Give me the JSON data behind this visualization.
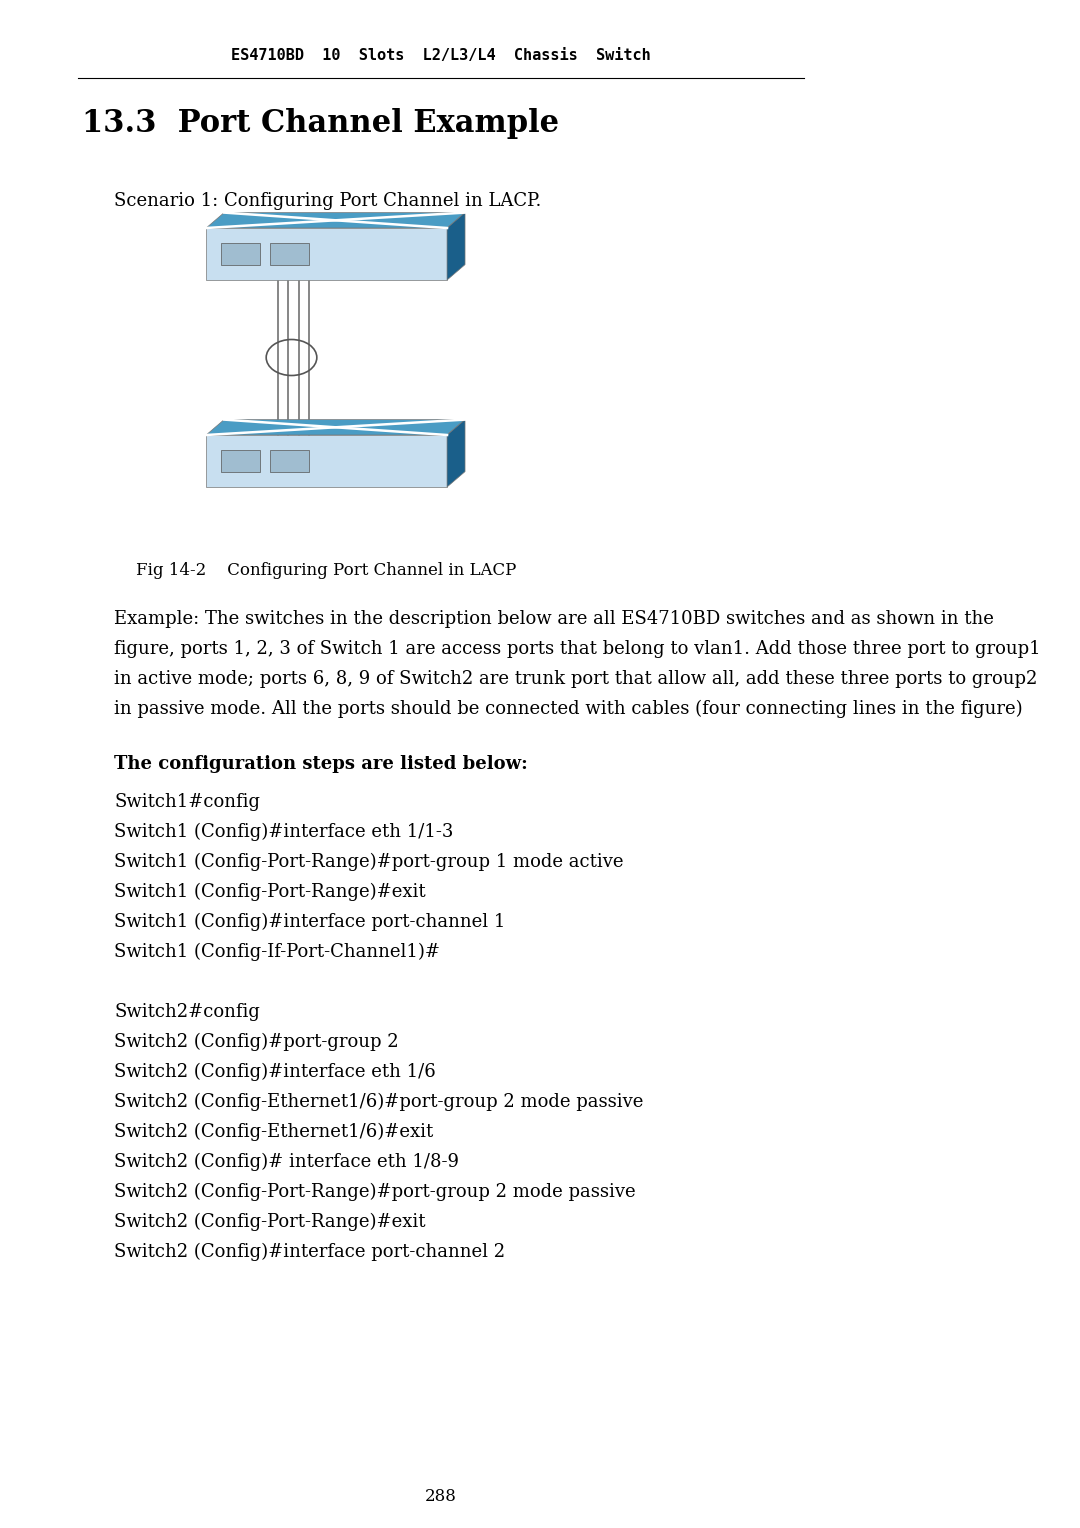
{
  "header": "ES4710BD  10  Slots  L2/L3/L4  Chassis  Switch",
  "title": "13.3  Port Channel Example",
  "scenario": "Scenario 1: Configuring Port Channel in LACP.",
  "fig_caption": "Fig 14-2    Configuring Port Channel in LACP",
  "example_text": [
    "Example: The switches in the description below are all ES4710BD switches and as shown in the",
    "figure, ports 1, 2, 3 of Switch 1 are access ports that belong to vlan1. Add those three port to group1",
    "in active mode; ports 6, 8, 9 of Switch2 are trunk port that allow all, add these three ports to group2",
    "in passive mode. All the ports should be connected with cables (four connecting lines in the figure)"
  ],
  "config_header": "The configuration steps are listed below:",
  "config_lines": [
    "Switch1#config",
    "Switch1 (Config)#interface eth 1/1-3",
    "Switch1 (Config-Port-Range)#port-group 1 mode active",
    "Switch1 (Config-Port-Range)#exit",
    "Switch1 (Config)#interface port-channel 1",
    "Switch1 (Config-If-Port-Channel1)#",
    "",
    "Switch2#config",
    "Switch2 (Config)#port-group 2",
    "Switch2 (Config)#interface eth 1/6",
    "Switch2 (Config-Ethernet1/6)#port-group 2 mode passive",
    "Switch2 (Config-Ethernet1/6)#exit",
    "Switch2 (Config)# interface eth 1/8-9",
    "Switch2 (Config-Port-Range)#port-group 2 mode passive",
    "Switch2 (Config-Port-Range)#exit",
    "Switch2 (Config)#interface port-channel 2"
  ],
  "page_number": "288",
  "bg_color": "#ffffff",
  "text_color": "#000000"
}
